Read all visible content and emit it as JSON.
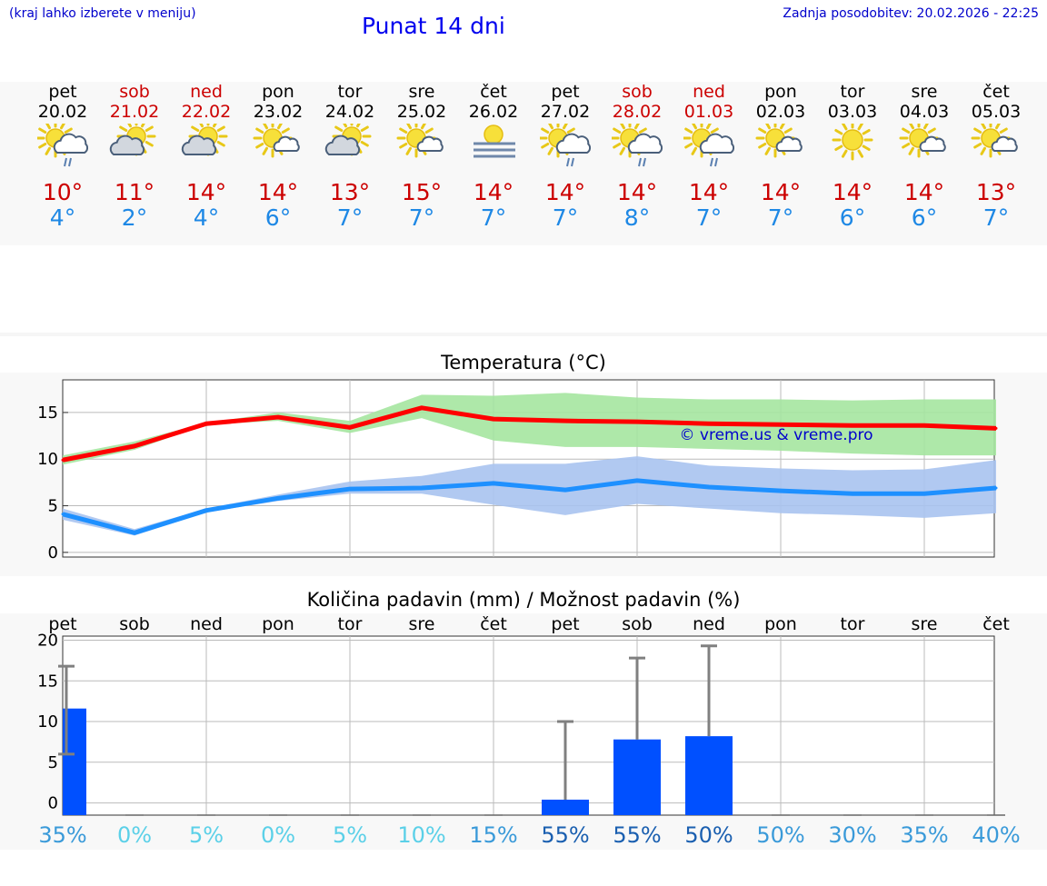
{
  "header": {
    "hint": "(kraj lahko izberete v meniju)",
    "title": "Punat 14 dni",
    "updated": "Zadnja posodobitev: 20.02.2026 - 22:25"
  },
  "days": [
    {
      "name": "pet",
      "date": "20.02",
      "max": "10°",
      "min": "4°",
      "icon": "sun-cloud-rain-icon",
      "weekend": false
    },
    {
      "name": "sob",
      "date": "21.02",
      "max": "11°",
      "min": "2°",
      "icon": "sun-behind-cloud-icon",
      "weekend": true
    },
    {
      "name": "ned",
      "date": "22.02",
      "max": "14°",
      "min": "4°",
      "icon": "sun-behind-cloud-icon",
      "weekend": true
    },
    {
      "name": "pon",
      "date": "23.02",
      "max": "14°",
      "min": "6°",
      "icon": "sun-small-cloud-icon",
      "weekend": false
    },
    {
      "name": "tor",
      "date": "24.02",
      "max": "13°",
      "min": "7°",
      "icon": "sun-behind-cloud-icon",
      "weekend": false
    },
    {
      "name": "sre",
      "date": "25.02",
      "max": "15°",
      "min": "7°",
      "icon": "sun-small-cloud-icon",
      "weekend": false
    },
    {
      "name": "čet",
      "date": "26.02",
      "max": "14°",
      "min": "7°",
      "icon": "sun-fog-icon",
      "weekend": false
    },
    {
      "name": "pet",
      "date": "27.02",
      "max": "14°",
      "min": "7°",
      "icon": "sun-cloud-rain-icon",
      "weekend": false
    },
    {
      "name": "sob",
      "date": "28.02",
      "max": "14°",
      "min": "8°",
      "icon": "sun-cloud-rain-icon",
      "weekend": true
    },
    {
      "name": "ned",
      "date": "01.03",
      "max": "14°",
      "min": "7°",
      "icon": "sun-cloud-rain-icon",
      "weekend": true
    },
    {
      "name": "pon",
      "date": "02.03",
      "max": "14°",
      "min": "7°",
      "icon": "sun-small-cloud-icon",
      "weekend": false
    },
    {
      "name": "tor",
      "date": "03.03",
      "max": "14°",
      "min": "6°",
      "icon": "sun-icon",
      "weekend": false
    },
    {
      "name": "sre",
      "date": "04.03",
      "max": "14°",
      "min": "6°",
      "icon": "sun-small-cloud-icon",
      "weekend": false
    },
    {
      "name": "čet",
      "date": "05.03",
      "max": "13°",
      "min": "7°",
      "icon": "sun-small-cloud-icon",
      "weekend": false
    }
  ],
  "colors": {
    "weekend": "#cc0000",
    "max_temp": "#cc0000",
    "min_temp": "#1e88e5",
    "max_line": "#ff0000",
    "min_line": "#1e90ff",
    "max_band": "#a5e6a0",
    "min_band": "#a9c3f0",
    "bar": "#0050ff",
    "whisker": "#808080",
    "watermark": "#0000cc"
  },
  "chart_data": [
    {
      "type": "line",
      "title": "Temperatura (°C)",
      "categories": [
        "20.02",
        "21.02",
        "22.02",
        "23.02",
        "24.02",
        "25.02",
        "26.02",
        "27.02",
        "28.02",
        "01.03",
        "02.03",
        "03.03",
        "04.03",
        "05.03"
      ],
      "ylim": [
        -0.5,
        18.5
      ],
      "yticks": [
        0,
        5,
        10,
        15
      ],
      "watermark": "© vreme.us & vreme.pro",
      "series": [
        {
          "name": "max",
          "values": [
            9.9,
            11.4,
            13.8,
            14.5,
            13.4,
            15.5,
            14.3,
            14.1,
            14.0,
            13.8,
            13.7,
            13.6,
            13.6,
            13.3
          ],
          "band_low": [
            9.4,
            11.0,
            13.7,
            14.1,
            12.8,
            14.4,
            12.0,
            11.3,
            11.3,
            11.1,
            10.9,
            10.6,
            10.4,
            10.4
          ],
          "band_high": [
            10.4,
            11.9,
            13.9,
            15.0,
            14.1,
            16.9,
            16.8,
            17.1,
            16.6,
            16.4,
            16.4,
            16.3,
            16.4,
            16.4
          ]
        },
        {
          "name": "min",
          "values": [
            4.1,
            2.1,
            4.5,
            5.8,
            6.8,
            6.9,
            7.4,
            6.7,
            7.7,
            7.0,
            6.6,
            6.3,
            6.3,
            6.9
          ],
          "band_low": [
            3.5,
            1.8,
            4.3,
            5.5,
            6.3,
            6.3,
            5.1,
            4.0,
            5.2,
            4.7,
            4.2,
            4.0,
            3.7,
            4.2
          ],
          "band_high": [
            4.7,
            2.5,
            4.7,
            6.2,
            7.6,
            8.2,
            9.5,
            9.5,
            10.3,
            9.3,
            9.0,
            8.8,
            8.9,
            9.9
          ]
        }
      ]
    },
    {
      "type": "bar",
      "title": "Količina padavin (mm) / Možnost padavin (%)",
      "categories": [
        "pet",
        "sob",
        "ned",
        "pon",
        "tor",
        "sre",
        "čet",
        "pet",
        "sob",
        "ned",
        "pon",
        "tor",
        "sre",
        "čet"
      ],
      "ylim": [
        -1.5,
        20.5
      ],
      "yticks": [
        0,
        5,
        10,
        15,
        20
      ],
      "values": [
        11.6,
        0,
        0,
        0,
        0,
        0,
        0,
        0.4,
        7.8,
        8.2,
        0,
        0,
        0,
        0
      ],
      "error_low": [
        6,
        0,
        0,
        0,
        0,
        0,
        0,
        0,
        0,
        0,
        0,
        0,
        0,
        0
      ],
      "error_high": [
        16.8,
        0,
        0,
        0,
        0,
        0,
        0,
        10.0,
        17.8,
        19.3,
        0,
        0,
        0,
        0
      ],
      "probability": [
        "35%",
        "0%",
        "5%",
        "0%",
        "5%",
        "10%",
        "15%",
        "55%",
        "55%",
        "50%",
        "50%",
        "30%",
        "35%",
        "40%"
      ],
      "probability_colors": [
        "#3a9ad9",
        "#5bd0e8",
        "#5bd0e8",
        "#5bd0e8",
        "#5bd0e8",
        "#5bd0e8",
        "#3a9ad9",
        "#1a5fb0",
        "#1a5fb0",
        "#1a5fb0",
        "#3a9ad9",
        "#3a9ad9",
        "#3a9ad9",
        "#3a9ad9"
      ]
    }
  ]
}
